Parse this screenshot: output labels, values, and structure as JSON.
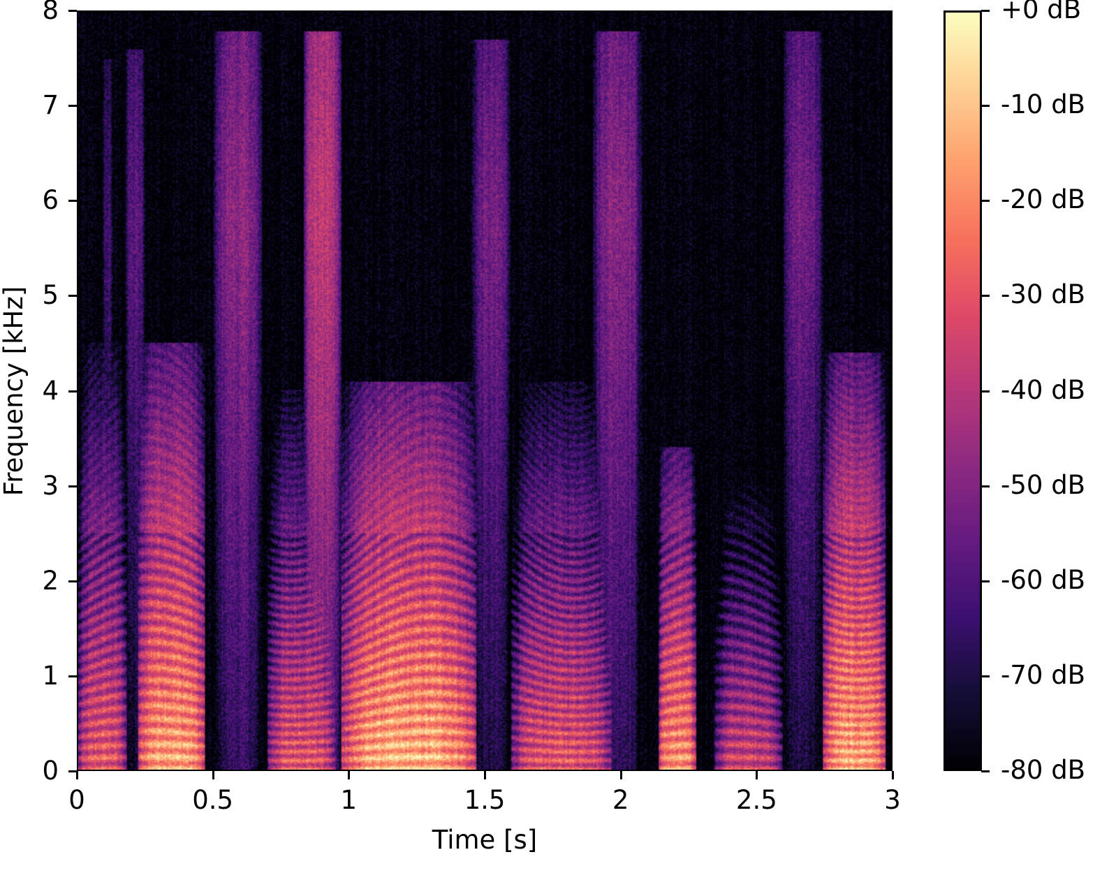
{
  "chart_data": {
    "type": "heatmap",
    "subtype": "spectrogram",
    "title": "",
    "xlabel": "Time [s]",
    "ylabel": "Frequency [kHz]",
    "xlim": [
      0,
      3.0
    ],
    "ylim": [
      0,
      8
    ],
    "x_ticks": [
      0,
      0.5,
      1,
      1.5,
      2,
      2.5,
      3
    ],
    "x_tick_labels": [
      "0",
      "0.5",
      "1",
      "1.5",
      "2",
      "2.5",
      "3"
    ],
    "y_ticks": [
      0,
      1,
      2,
      3,
      4,
      5,
      6,
      7,
      8
    ],
    "y_tick_labels": [
      "0",
      "1",
      "2",
      "3",
      "4",
      "5",
      "6",
      "7",
      "8"
    ],
    "colormap": "magma",
    "colorbar": {
      "range": [
        -80,
        0
      ],
      "ticks": [
        0,
        -10,
        -20,
        -30,
        -40,
        -50,
        -60,
        -70,
        -80
      ],
      "tick_labels": [
        "+0 dB",
        "-10 dB",
        "-20 dB",
        "-30 dB",
        "-40 dB",
        "-50 dB",
        "-60 dB",
        "-70 dB",
        "-80 dB"
      ],
      "position": "right"
    },
    "grid": false,
    "segments": [
      {
        "t_start": 0.0,
        "t_end": 0.18,
        "max_freq_khz": 4.5,
        "peak_db": -20,
        "harmonic": true
      },
      {
        "t_start": 0.09,
        "t_end": 0.13,
        "max_freq_khz": 7.5,
        "peak_db": -55,
        "harmonic": false
      },
      {
        "t_start": 0.17,
        "t_end": 0.25,
        "max_freq_khz": 7.6,
        "peak_db": -50,
        "harmonic": false
      },
      {
        "t_start": 0.22,
        "t_end": 0.47,
        "max_freq_khz": 4.5,
        "peak_db": -5,
        "harmonic": true
      },
      {
        "t_start": 0.5,
        "t_end": 0.68,
        "max_freq_khz": 7.8,
        "peak_db": -40,
        "harmonic": false
      },
      {
        "t_start": 0.7,
        "t_end": 0.95,
        "max_freq_khz": 4.0,
        "peak_db": -20,
        "harmonic": true
      },
      {
        "t_start": 0.83,
        "t_end": 0.97,
        "max_freq_khz": 7.8,
        "peak_db": -30,
        "harmonic": false
      },
      {
        "t_start": 0.97,
        "t_end": 1.47,
        "max_freq_khz": 4.1,
        "peak_db": -3,
        "harmonic": true
      },
      {
        "t_start": 1.45,
        "t_end": 1.6,
        "max_freq_khz": 7.7,
        "peak_db": -45,
        "harmonic": false
      },
      {
        "t_start": 1.6,
        "t_end": 1.97,
        "max_freq_khz": 4.1,
        "peak_db": -20,
        "harmonic": true
      },
      {
        "t_start": 1.9,
        "t_end": 2.08,
        "max_freq_khz": 7.8,
        "peak_db": -40,
        "harmonic": false
      },
      {
        "t_start": 2.14,
        "t_end": 2.28,
        "max_freq_khz": 3.4,
        "peak_db": -8,
        "harmonic": true
      },
      {
        "t_start": 2.35,
        "t_end": 2.6,
        "max_freq_khz": 3.0,
        "peak_db": -25,
        "harmonic": true
      },
      {
        "t_start": 2.6,
        "t_end": 2.75,
        "max_freq_khz": 7.8,
        "peak_db": -45,
        "harmonic": false
      },
      {
        "t_start": 2.75,
        "t_end": 2.98,
        "max_freq_khz": 4.4,
        "peak_db": -5,
        "harmonic": true
      }
    ]
  }
}
